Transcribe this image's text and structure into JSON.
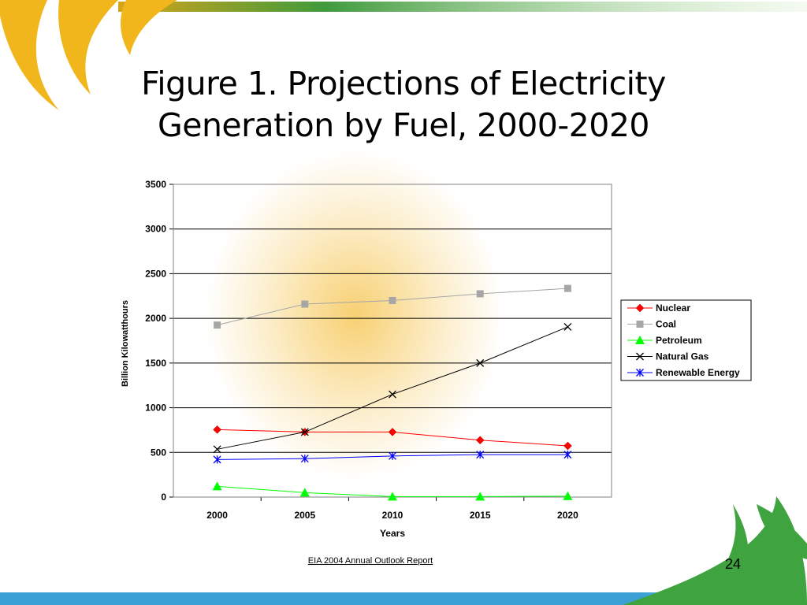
{
  "slide": {
    "title_line1": "Figure 1. Projections of Electricity",
    "title_line2": "Generation by Fuel, 2000-2020",
    "source_note": "EIA 2004 Annual Outlook Report",
    "page_number": "24"
  },
  "theme": {
    "top_band": [
      "#d8a419",
      "#3f9a3c",
      "#c8e6b8"
    ],
    "bottom_band": [
      "#3aa0d6",
      "#a7d9ef"
    ],
    "swoosh_yellow": "#f0b61c",
    "swoosh_green": "#3fa33f",
    "glow": "#f6c85a"
  },
  "chart_data": {
    "type": "line",
    "title": "",
    "xlabel": "Years",
    "ylabel": "Billion Kilowatthours",
    "categories": [
      "2000",
      "2005",
      "2010",
      "2015",
      "2020"
    ],
    "ylim": [
      0,
      3500
    ],
    "yticks": [
      0,
      500,
      1000,
      1500,
      2000,
      2500,
      3000,
      3500
    ],
    "grid": "horizontal",
    "legend_position": "right",
    "series": [
      {
        "name": "Nuclear",
        "values": [
          755,
          728,
          728,
          637,
          573
        ],
        "color": "#ff0000",
        "marker": "diamond",
        "marker_color": "#ff0000"
      },
      {
        "name": "Coal",
        "values": [
          1925,
          2160,
          2200,
          2275,
          2335
        ],
        "color": "#a6a6a6",
        "marker": "square",
        "marker_color": "#a6a6a6"
      },
      {
        "name": "Petroleum",
        "values": [
          120,
          50,
          5,
          5,
          10
        ],
        "color": "#00ff00",
        "marker": "triangle",
        "marker_color": "#00ff00"
      },
      {
        "name": "Natural Gas",
        "values": [
          535,
          728,
          1150,
          1500,
          1905
        ],
        "color": "#000000",
        "marker": "x",
        "marker_color": "#000000"
      },
      {
        "name": "Renewable Energy",
        "values": [
          420,
          430,
          460,
          475,
          475
        ],
        "color": "#0000ff",
        "marker": "asterisk",
        "marker_color": "#0000ff"
      }
    ]
  }
}
